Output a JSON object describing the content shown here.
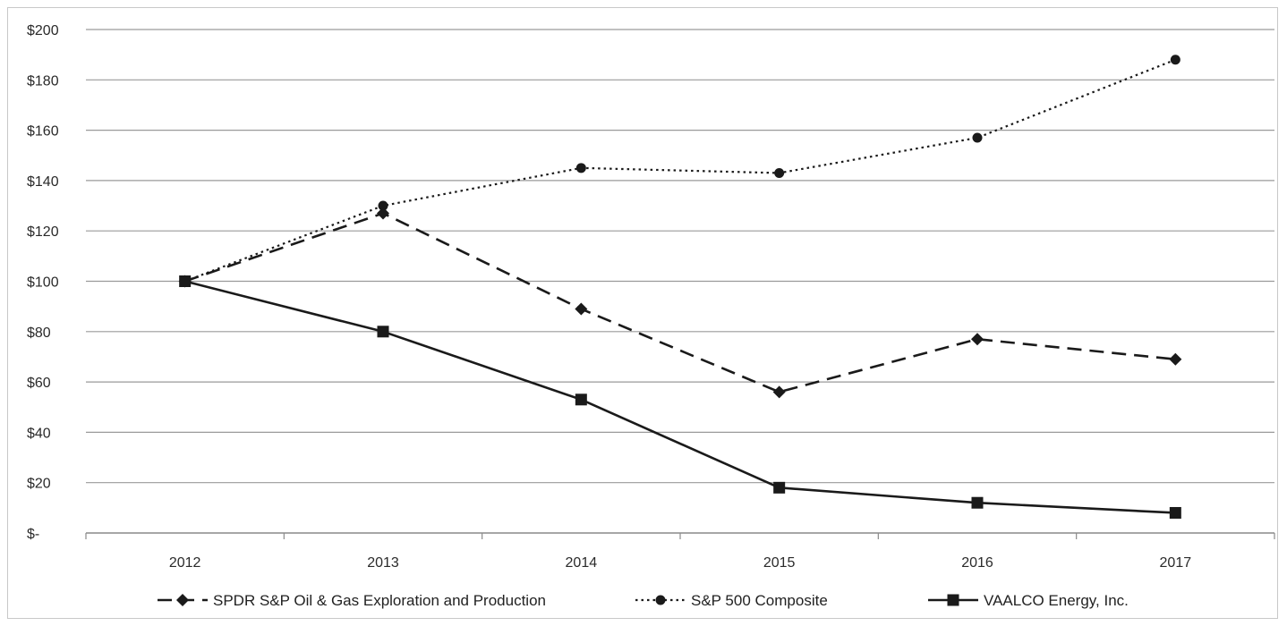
{
  "chart_data": {
    "type": "line",
    "categories": [
      "2012",
      "2013",
      "2014",
      "2015",
      "2016",
      "2017"
    ],
    "y_tick_labels": [
      "$-",
      "$20",
      "$40",
      "$60",
      "$80",
      "$100",
      "$120",
      "$140",
      "$160",
      "$180",
      "$200"
    ],
    "ylim": [
      0,
      200
    ],
    "y_step": 20,
    "grid": true,
    "legend_position": "bottom",
    "series": [
      {
        "name": "SPDR S&P Oil & Gas Exploration and Production",
        "values": [
          100,
          127,
          89,
          56,
          77,
          69
        ],
        "line_style": "dashed",
        "marker": "diamond",
        "color": "#1a1a1a"
      },
      {
        "name": "S&P 500 Composite",
        "values": [
          100,
          130,
          145,
          143,
          157,
          188
        ],
        "line_style": "dotted",
        "marker": "circle",
        "color": "#1a1a1a"
      },
      {
        "name": "VAALCO Energy, Inc.",
        "values": [
          100,
          80,
          53,
          18,
          12,
          8
        ],
        "line_style": "solid",
        "marker": "square",
        "color": "#1a1a1a"
      }
    ]
  }
}
